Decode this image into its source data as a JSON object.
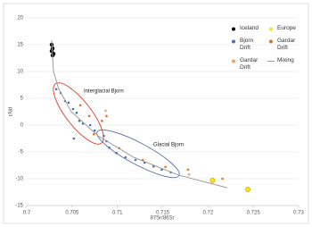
{
  "chart_data": {
    "type": "scatter",
    "x_label": "87Sr/86Sr",
    "y_label": "εNd",
    "xlim": [
      0.7,
      0.73
    ],
    "xticks": [
      0.7,
      0.705,
      0.71,
      0.715,
      0.72,
      0.725,
      0.73
    ],
    "ylim": [
      -15,
      20
    ],
    "yticks": [
      20,
      15,
      10,
      5,
      0,
      -5,
      -10,
      -15
    ],
    "grid": true,
    "legend": "upper right",
    "annotations": [
      "Interglacial Bjorn",
      "Glacial Bjorn"
    ],
    "series": [
      {
        "name": "Iceland",
        "color": "#000000",
        "style": "points",
        "x": [
          0.70275,
          0.70285,
          0.70275,
          0.70295,
          0.70285
        ],
        "y": [
          15,
          14.3,
          13.8,
          13.3,
          13
        ]
      },
      {
        "name": "Europe",
        "color": "#ffe600",
        "style": "rings",
        "x": [
          0.7205,
          0.7244
        ],
        "y": [
          -10.3,
          -12
        ]
      },
      {
        "name": "Bjorn Drift",
        "color": "#4a6fc0",
        "style": "points",
        "x": [
          0.70325,
          0.70374,
          0.70423,
          0.70462,
          0.70511,
          0.7055,
          0.7058,
          0.7062,
          0.7052,
          0.707,
          0.7075,
          0.7085,
          0.7088,
          0.7091,
          0.7099,
          0.7109,
          0.712,
          0.713,
          0.714,
          0.7149,
          0.7159
        ],
        "y": [
          6.7,
          6,
          4.5,
          4.2,
          3,
          2.3,
          0.8,
          0.3,
          -2.5,
          0,
          -1,
          -2,
          -3,
          -4.2,
          -5.2,
          -6,
          -6.5,
          -7,
          -7.7,
          -8.3,
          -8.8
        ]
      },
      {
        "name": "Gardar Drift",
        "color": "#e0702a",
        "style": "points",
        "x": [
          0.7059,
          0.7069,
          0.7074,
          0.7083,
          0.7088,
          0.7102,
          0.7128,
          0.7153,
          0.7178,
          0.7216
        ],
        "y": [
          3.7,
          1.7,
          -1.7,
          0.8,
          1.7,
          -4.3,
          -6.5,
          -7.8,
          -8.3,
          -10
        ]
      },
      {
        "name": "Gardar Drift",
        "color": "#f4a261",
        "style": "points",
        "x": [
          0.7087,
          0.7179
        ],
        "y": [
          2.7,
          -9.2
        ]
      },
      {
        "name": "Mixing",
        "color": "#9a9a9a",
        "style": "line",
        "x": [
          0.70275,
          0.70295,
          0.70354,
          0.70492,
          0.70787,
          0.7118,
          0.71672,
          0.72213
        ],
        "y": [
          15.8,
          10,
          6.7,
          2.5,
          -2,
          -6,
          -9.3,
          -11.7
        ]
      }
    ]
  }
}
